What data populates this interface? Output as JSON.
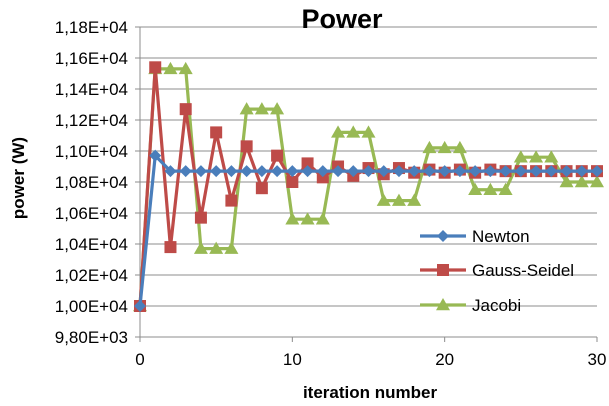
{
  "chart_data": {
    "type": "line",
    "title": "Power",
    "xlabel": "iteration number",
    "ylabel": "power (W)",
    "xlim": [
      0,
      30
    ],
    "ylim": [
      9800,
      11800
    ],
    "x_ticks": [
      0,
      10,
      20,
      30
    ],
    "x_tick_labels": [
      "0",
      "10",
      "20",
      "30"
    ],
    "y_ticks": [
      9800,
      10000,
      10200,
      10400,
      10600,
      10800,
      11000,
      11200,
      11400,
      11600,
      11800
    ],
    "y_tick_labels": [
      "9,80E+03",
      "1,00E+04",
      "1,02E+04",
      "1,04E+04",
      "1,06E+04",
      "1,08E+04",
      "1,10E+04",
      "1,12E+04",
      "1,14E+04",
      "1,16E+04",
      "1,18E+04"
    ],
    "grid": "horizontal",
    "legend_position": "right",
    "x": [
      0,
      1,
      2,
      3,
      4,
      5,
      6,
      7,
      8,
      9,
      10,
      11,
      12,
      13,
      14,
      15,
      16,
      17,
      18,
      19,
      20,
      21,
      22,
      23,
      24,
      25,
      26,
      27,
      28,
      29,
      30
    ],
    "series": [
      {
        "name": "Newton",
        "color": "#4a7ebb",
        "marker": "diamond",
        "values": [
          10000,
          10970,
          10870,
          10870,
          10870,
          10870,
          10870,
          10870,
          10870,
          10870,
          10870,
          10870,
          10870,
          10870,
          10870,
          10870,
          10870,
          10870,
          10870,
          10870,
          10870,
          10870,
          10870,
          10870,
          10870,
          10870,
          10870,
          10870,
          10870,
          10870,
          10870
        ]
      },
      {
        "name": "Gauss-Seidel",
        "color": "#be4b48",
        "marker": "square",
        "values": [
          10000,
          11540,
          10380,
          11270,
          10570,
          11120,
          10680,
          11030,
          10760,
          10970,
          10800,
          10920,
          10830,
          10900,
          10840,
          10890,
          10850,
          10890,
          10860,
          10880,
          10860,
          10880,
          10860,
          10880,
          10870,
          10870,
          10870,
          10870,
          10870,
          10870,
          10870
        ]
      },
      {
        "name": "Jacobi",
        "color": "#98b954",
        "marker": "triangle",
        "values": [
          10000,
          11530,
          11530,
          11530,
          10370,
          10370,
          10370,
          11270,
          11270,
          11270,
          10560,
          10560,
          10560,
          11120,
          11120,
          11120,
          10680,
          10680,
          10680,
          11020,
          11020,
          11020,
          10750,
          10750,
          10750,
          10960,
          10960,
          10960,
          10800,
          10800,
          10800
        ]
      }
    ]
  }
}
